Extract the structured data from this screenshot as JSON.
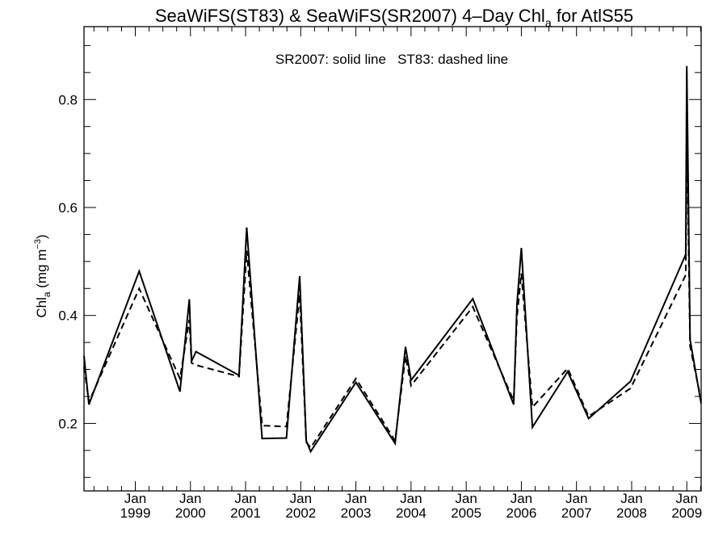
{
  "chart_data": {
    "type": "line",
    "title": "SeaWiFS(ST83) & SeaWiFS(SR2007) 4–Day Chl",
    "title_subscript": "a",
    "title_suffix": " for AtlS55",
    "annotation": "SR2007: solid line   ST83: dashed line",
    "ylabel": "Chl",
    "ylabel_subscript": "a",
    "ylabel_suffix": " (mg m",
    "ylabel_superscript": "−3",
    "ylabel_close": ")",
    "xlim": [
      1998.07,
      2009.26
    ],
    "ylim": [
      0.075,
      0.935
    ],
    "x_ticks": [
      {
        "value": 1999,
        "month": "Jan",
        "year": "1999"
      },
      {
        "value": 2000,
        "month": "Jan",
        "year": "2000"
      },
      {
        "value": 2001,
        "month": "Jan",
        "year": "2001"
      },
      {
        "value": 2002,
        "month": "Jan",
        "year": "2002"
      },
      {
        "value": 2003,
        "month": "Jan",
        "year": "2003"
      },
      {
        "value": 2004,
        "month": "Jan",
        "year": "2004"
      },
      {
        "value": 2005,
        "month": "Jan",
        "year": "2005"
      },
      {
        "value": 2006,
        "month": "Jan",
        "year": "2006"
      },
      {
        "value": 2007,
        "month": "Jan",
        "year": "2007"
      },
      {
        "value": 2008,
        "month": "Jan",
        "year": "2008"
      },
      {
        "value": 2009,
        "month": "Jan",
        "year": "2009"
      }
    ],
    "y_ticks": [
      {
        "value": 0.2,
        "label": "0.2"
      },
      {
        "value": 0.4,
        "label": "0.4"
      },
      {
        "value": 0.6,
        "label": "0.6"
      },
      {
        "value": 0.8,
        "label": "0.8"
      }
    ],
    "series": [
      {
        "name": "SR2007",
        "style": "solid",
        "color": "#000000",
        "points": [
          [
            1998.07,
            0.325
          ],
          [
            1998.16,
            0.235
          ],
          [
            1999.07,
            0.482
          ],
          [
            1999.81,
            0.259
          ],
          [
            1999.98,
            0.43
          ],
          [
            2000.02,
            0.315
          ],
          [
            2000.1,
            0.333
          ],
          [
            2000.88,
            0.289
          ],
          [
            2001.02,
            0.563
          ],
          [
            2001.3,
            0.172
          ],
          [
            2001.74,
            0.173
          ],
          [
            2001.98,
            0.473
          ],
          [
            2002.1,
            0.168
          ],
          [
            2002.18,
            0.148
          ],
          [
            2003.0,
            0.276
          ],
          [
            2003.71,
            0.163
          ],
          [
            2003.9,
            0.342
          ],
          [
            2004.0,
            0.28
          ],
          [
            2005.12,
            0.431
          ],
          [
            2005.86,
            0.235
          ],
          [
            2005.92,
            0.421
          ],
          [
            2006.0,
            0.525
          ],
          [
            2006.2,
            0.193
          ],
          [
            2006.84,
            0.296
          ],
          [
            2007.22,
            0.209
          ],
          [
            2007.98,
            0.278
          ],
          [
            2008.98,
            0.513
          ],
          [
            2009.0,
            0.862
          ],
          [
            2009.06,
            0.355
          ],
          [
            2009.26,
            0.237
          ]
        ]
      },
      {
        "name": "ST83",
        "style": "dashed",
        "color": "#000000",
        "points": [
          [
            1998.07,
            0.305
          ],
          [
            1998.16,
            0.24
          ],
          [
            1999.07,
            0.45
          ],
          [
            1999.81,
            0.283
          ],
          [
            1999.98,
            0.392
          ],
          [
            2000.02,
            0.312
          ],
          [
            2000.1,
            0.308
          ],
          [
            2000.88,
            0.287
          ],
          [
            2001.02,
            0.52
          ],
          [
            2001.3,
            0.196
          ],
          [
            2001.74,
            0.194
          ],
          [
            2001.98,
            0.44
          ],
          [
            2002.1,
            0.165
          ],
          [
            2002.18,
            0.155
          ],
          [
            2003.0,
            0.283
          ],
          [
            2003.71,
            0.168
          ],
          [
            2003.9,
            0.325
          ],
          [
            2004.0,
            0.27
          ],
          [
            2005.12,
            0.416
          ],
          [
            2005.86,
            0.242
          ],
          [
            2005.92,
            0.398
          ],
          [
            2006.0,
            0.478
          ],
          [
            2006.2,
            0.23
          ],
          [
            2006.84,
            0.302
          ],
          [
            2007.22,
            0.213
          ],
          [
            2007.98,
            0.265
          ],
          [
            2008.98,
            0.475
          ],
          [
            2009.0,
            0.745
          ],
          [
            2009.06,
            0.343
          ],
          [
            2009.26,
            0.243
          ]
        ]
      }
    ]
  }
}
